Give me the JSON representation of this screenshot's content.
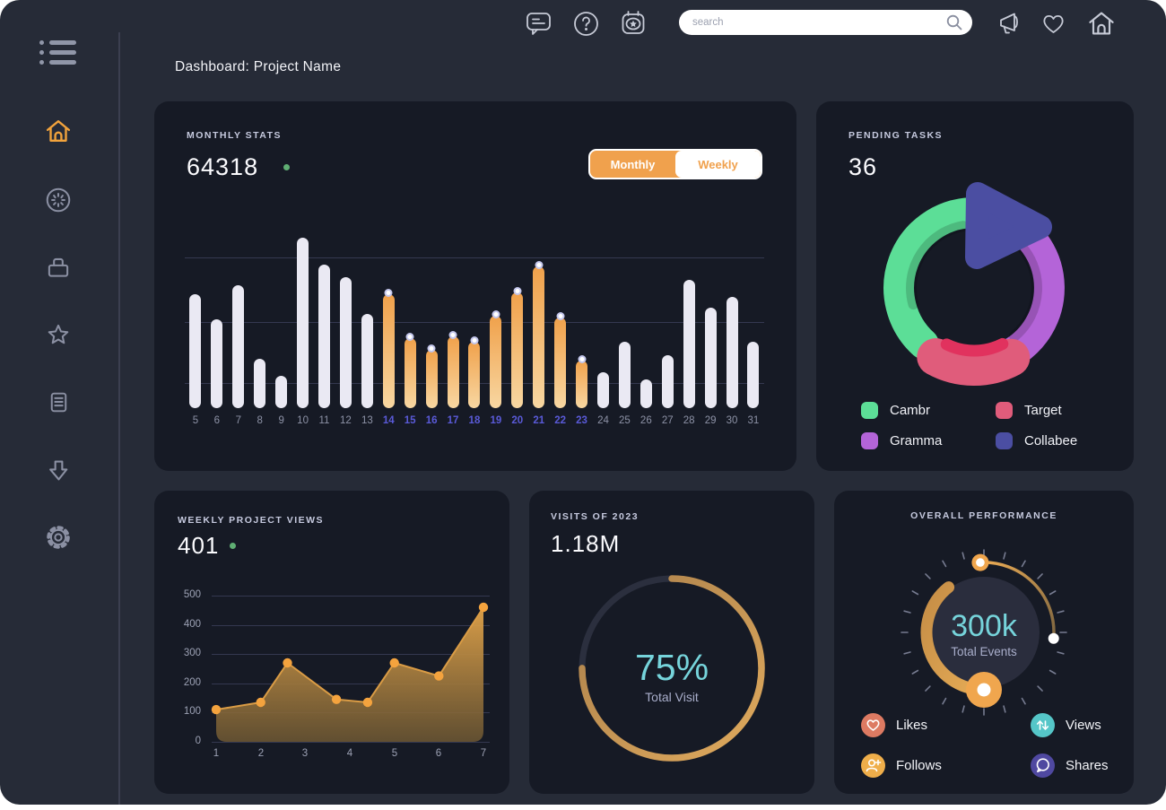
{
  "window": {
    "title": "Dashboard: Project Name"
  },
  "topbar": {
    "search": {
      "placeholder": "search"
    },
    "left_icons": [
      {
        "name": "chat-icon"
      },
      {
        "name": "help-icon"
      },
      {
        "name": "calendar-star-icon"
      }
    ],
    "right_icons": [
      {
        "name": "megaphone-icon"
      },
      {
        "name": "heart-icon"
      },
      {
        "name": "home-icon"
      }
    ]
  },
  "sidebar": {
    "menu_icon": "hamburger-menu-icon",
    "items": [
      {
        "name": "home",
        "icon": "home-icon",
        "active": true
      },
      {
        "name": "activity",
        "icon": "clock-icon",
        "active": false
      },
      {
        "name": "projects",
        "icon": "briefcase-icon",
        "active": false
      },
      {
        "name": "favorites",
        "icon": "star-icon",
        "active": false
      },
      {
        "name": "documents",
        "icon": "document-icon",
        "active": false
      },
      {
        "name": "downloads",
        "icon": "download-arrow-icon",
        "active": false
      },
      {
        "name": "settings",
        "icon": "gear-icon",
        "active": false
      }
    ]
  },
  "cards": {
    "monthly_stats": {
      "label": "MONTHLY STATS",
      "value": "64318",
      "toggle": {
        "options": [
          "Monthly",
          "Weekly"
        ],
        "selected": "Monthly"
      }
    },
    "pending_tasks": {
      "label": "PENDING TASKS",
      "value": "36"
    },
    "weekly_views": {
      "label": "WEEKLY PROJECT VIEWS",
      "value": "401"
    },
    "visits": {
      "label": "VISITS OF 2023",
      "value": "1.18M",
      "percent": "75%",
      "caption": "Total Visit"
    },
    "performance": {
      "label": "OVERALL PERFORMANCE",
      "value": "300k",
      "caption": "Total Events",
      "legend": [
        {
          "label": "Likes",
          "color": "#DD7A62",
          "icon": "heart-icon"
        },
        {
          "label": "Views",
          "color": "#55C6C8",
          "icon": "arrows-up-down-icon"
        },
        {
          "label": "Follows",
          "color": "#EFAE4A",
          "icon": "add-user-icon"
        },
        {
          "label": "Shares",
          "color": "#4F48A0",
          "icon": "chat-bubble-icon"
        }
      ]
    }
  },
  "chart_data": [
    {
      "type": "bar",
      "title": "Monthly Stats",
      "categories": [
        5,
        6,
        7,
        8,
        9,
        10,
        11,
        12,
        13,
        14,
        15,
        16,
        17,
        18,
        19,
        20,
        21,
        22,
        23,
        24,
        25,
        26,
        27,
        28,
        29,
        30,
        31
      ],
      "values": [
        67,
        52,
        72,
        29,
        19,
        100,
        84,
        77,
        55,
        67,
        41,
        34,
        42,
        39,
        54,
        68,
        83,
        53,
        28,
        21,
        39,
        17,
        31,
        75,
        59,
        65,
        39
      ],
      "highlighted_categories": [
        14,
        15,
        16,
        17,
        18,
        19,
        20,
        21,
        22,
        23
      ],
      "bar_color": "#EAE9F3",
      "highlight_gradient": [
        "#F0A14B",
        "#F8D7A2"
      ],
      "label_color": "#8D92A6",
      "highlight_label_color": "#5A5AD8",
      "ylim": [
        0,
        100
      ],
      "gridlines_pct": [
        14,
        50,
        88
      ]
    },
    {
      "type": "pie",
      "title": "Pending Tasks",
      "slices": [
        {
          "label": "Cambr",
          "color": "#5CDE97",
          "value_pct": 38,
          "arc_deg": [
            222,
            358
          ]
        },
        {
          "label": "Target",
          "color": "#E05C7B",
          "value_pct": 17,
          "arc_deg": [
            152,
            209
          ]
        },
        {
          "label": "Gramma",
          "color": "#B464D8",
          "value_pct": 32,
          "arc_deg": [
            30,
            148
          ]
        },
        {
          "label": "Collabee",
          "color": "#4B4EA2",
          "value_pct": 13,
          "shape": "rounded-triangle"
        }
      ]
    },
    {
      "type": "area",
      "title": "Weekly Project Views",
      "x": [
        1,
        2,
        2.6,
        3.7,
        4.4,
        5,
        6,
        7
      ],
      "y": [
        110,
        135,
        270,
        145,
        135,
        270,
        225,
        460
      ],
      "xticks": [
        1,
        2,
        3,
        4,
        5,
        6,
        7
      ],
      "yticks": [
        0,
        100,
        200,
        300,
        400,
        500
      ],
      "ylim": [
        0,
        500
      ],
      "line_color": "#DA9C45",
      "fill_gradient": [
        "#E4A54A",
        "#6E5833"
      ],
      "dot_color": "#F4A33E"
    },
    {
      "type": "radial-progress",
      "title": "Visits of 2023",
      "percent": 75,
      "center_label": "75%",
      "caption": "Total Visit",
      "ring_color": "#C99850",
      "track_color": "#2B2F3E"
    },
    {
      "type": "gauge",
      "title": "Overall Performance",
      "center_value": "300k",
      "caption": "Total Events",
      "outer_arc_deg": [
        -3,
        95
      ],
      "inner_arc_deg": [
        180,
        322
      ],
      "arc_color": "#D29A4E",
      "knob_color": "#F0A64E"
    }
  ],
  "colors": {
    "app_bg": "#262B37",
    "card_bg": "#161A25",
    "accent_orange": "#F0A14D",
    "teal": "#76D4DB",
    "green_dot": "#5FAE73",
    "highlight_blue": "#5A5AD8"
  }
}
